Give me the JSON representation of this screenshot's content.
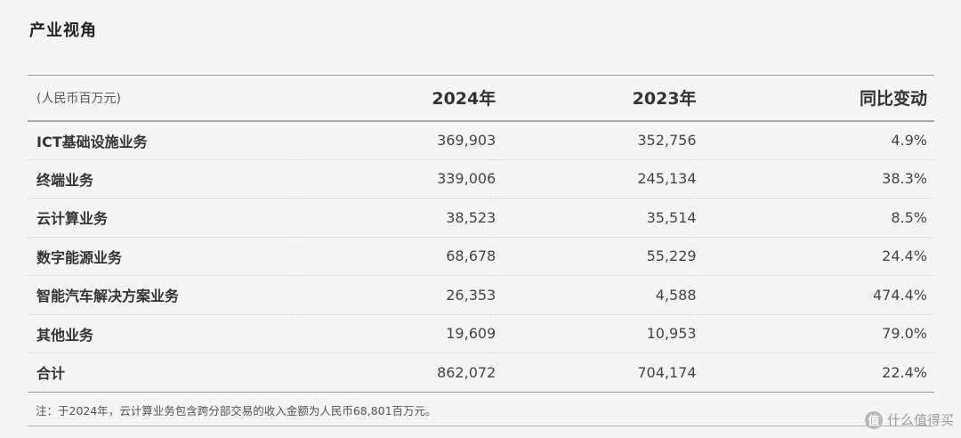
{
  "section_title": "产业视角",
  "table": {
    "header": {
      "unit": "(人民币百万元)",
      "col_2024": "2024年",
      "col_2023": "2023年",
      "col_change": "同比变动"
    },
    "rows": [
      {
        "name": "ICT基础设施业务",
        "v2024": "369,903",
        "v2023": "352,756",
        "change": "4.9%"
      },
      {
        "name": "终端业务",
        "v2024": "339,006",
        "v2023": "245,134",
        "change": "38.3%"
      },
      {
        "name": "云计算业务",
        "v2024": "38,523",
        "v2023": "35,514",
        "change": "8.5%"
      },
      {
        "name": "数字能源业务",
        "v2024": "68,678",
        "v2023": "55,229",
        "change": "24.4%"
      },
      {
        "name": "智能汽车解决方案业务",
        "v2024": "26,353",
        "v2023": "4,588",
        "change": "474.4%"
      },
      {
        "name": "其他业务",
        "v2024": "19,609",
        "v2023": "10,953",
        "change": "79.0%"
      },
      {
        "name": "合计",
        "v2024": "862,072",
        "v2023": "704,174",
        "change": "22.4%"
      }
    ]
  },
  "footnote": "注：于2024年，云计算业务包含跨分部交易的收入金额为人民币68,801百万元。",
  "watermark": {
    "badge": "值",
    "text": "什么值得买"
  }
}
